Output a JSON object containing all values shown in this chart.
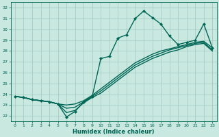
{
  "xlabel": "Humidex (Indice chaleur)",
  "xlim": [
    -0.5,
    23.5
  ],
  "ylim": [
    21.5,
    32.5
  ],
  "yticks": [
    22,
    23,
    24,
    25,
    26,
    27,
    28,
    29,
    30,
    31,
    32
  ],
  "xticks": [
    0,
    1,
    2,
    3,
    4,
    5,
    6,
    7,
    8,
    9,
    10,
    11,
    12,
    13,
    14,
    15,
    16,
    17,
    18,
    19,
    20,
    21,
    22,
    23
  ],
  "bg_color": "#c8e8e0",
  "grid_color": "#a0c8c0",
  "line_color": "#006655",
  "lines": [
    {
      "x": [
        0,
        1,
        2,
        3,
        4,
        5,
        6,
        7,
        8,
        9,
        10,
        11,
        12,
        13,
        14,
        15,
        16,
        17,
        18,
        19,
        20,
        21,
        22,
        23
      ],
      "y": [
        23.8,
        23.7,
        23.5,
        23.4,
        23.3,
        23.1,
        21.9,
        22.4,
        23.3,
        23.8,
        27.3,
        27.5,
        29.2,
        29.5,
        31.0,
        31.7,
        31.1,
        30.5,
        29.4,
        28.6,
        28.8,
        29.0,
        30.5,
        28.3
      ],
      "marker": "D",
      "markersize": 2.0,
      "linewidth": 1.0,
      "has_marker": true
    },
    {
      "x": [
        0,
        1,
        2,
        3,
        4,
        5,
        6,
        7,
        8,
        9,
        10,
        11,
        12,
        13,
        14,
        15,
        16,
        17,
        18,
        19,
        20,
        21,
        22,
        23
      ],
      "y": [
        23.8,
        23.7,
        23.5,
        23.4,
        23.3,
        23.1,
        23.0,
        23.1,
        23.4,
        23.9,
        24.5,
        25.1,
        25.7,
        26.3,
        26.9,
        27.3,
        27.7,
        28.0,
        28.2,
        28.4,
        28.6,
        28.8,
        28.9,
        28.3
      ],
      "marker": null,
      "markersize": 0,
      "linewidth": 1.0,
      "has_marker": false
    },
    {
      "x": [
        0,
        1,
        2,
        3,
        4,
        5,
        6,
        7,
        8,
        9,
        10,
        11,
        12,
        13,
        14,
        15,
        16,
        17,
        18,
        19,
        20,
        21,
        22,
        23
      ],
      "y": [
        23.8,
        23.7,
        23.5,
        23.4,
        23.3,
        23.1,
        22.7,
        22.8,
        23.3,
        23.8,
        24.3,
        24.9,
        25.5,
        26.1,
        26.7,
        27.1,
        27.5,
        27.8,
        28.1,
        28.3,
        28.5,
        28.7,
        28.8,
        28.1
      ],
      "marker": null,
      "markersize": 0,
      "linewidth": 1.0,
      "has_marker": false
    },
    {
      "x": [
        0,
        1,
        2,
        3,
        4,
        5,
        6,
        7,
        8,
        9,
        10,
        11,
        12,
        13,
        14,
        15,
        16,
        17,
        18,
        19,
        20,
        21,
        22,
        23
      ],
      "y": [
        23.8,
        23.7,
        23.5,
        23.4,
        23.3,
        23.1,
        22.3,
        22.5,
        23.2,
        23.7,
        24.1,
        24.7,
        25.3,
        25.9,
        26.5,
        26.9,
        27.3,
        27.6,
        27.9,
        28.1,
        28.4,
        28.6,
        28.7,
        28.0
      ],
      "marker": null,
      "markersize": 0,
      "linewidth": 1.0,
      "has_marker": false
    }
  ]
}
